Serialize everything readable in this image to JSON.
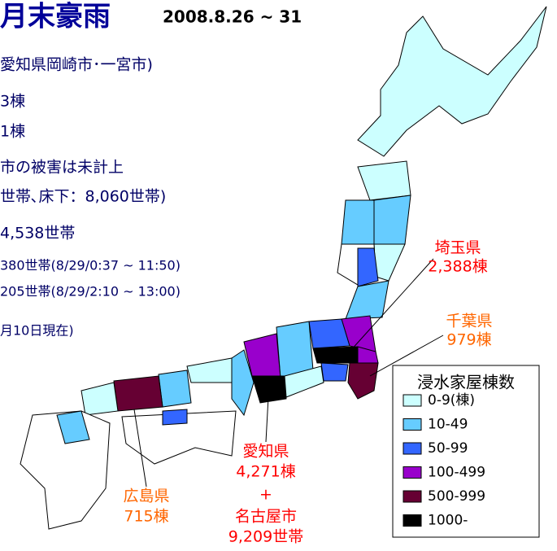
{
  "title": "月末豪雨",
  "date": "2008.8.26 ~ 31",
  "notes": [
    "愛知県岡崎市･一宮市)",
    "3棟",
    "1棟",
    "市の被害は未計上",
    "世帯､床下：8,060世帯)",
    "4,538世帯",
    "380世帯(8/29/0:37 ~ 11:50)",
    "205世帯(8/29/2:10 ~ 13:00)",
    "月10日現在)"
  ],
  "labels": {
    "saitama": {
      "name": "埼玉県",
      "count": "2,388棟"
    },
    "chiba": {
      "name": "千葉県",
      "count": "979棟"
    },
    "aichi": {
      "name": "愛知県",
      "count": "4,271棟",
      "plus": "+",
      "city": "名古屋市",
      "city_count": "9,209世帯"
    },
    "hiroshima": {
      "name": "広島県",
      "count": "715棟"
    }
  },
  "legend": {
    "title": "浸水家屋棟数",
    "items": [
      {
        "label": "0-9(棟)",
        "color": "#ccffff"
      },
      {
        "label": "10-49",
        "color": "#66ccff"
      },
      {
        "label": "50-99",
        "color": "#3366ff"
      },
      {
        "label": "100-499",
        "color": "#9900cc"
      },
      {
        "label": "500-999",
        "color": "#660033"
      },
      {
        "label": "1000-",
        "color": "#000000"
      }
    ]
  }
}
